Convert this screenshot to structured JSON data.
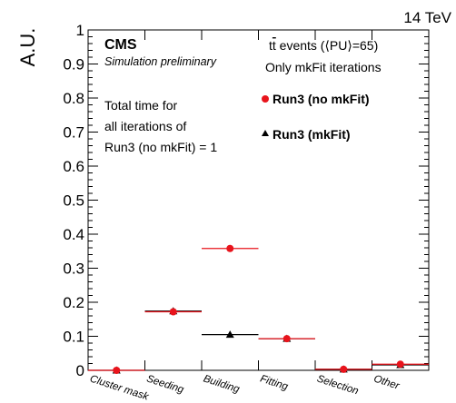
{
  "chart_data": {
    "type": "scatter",
    "title": "",
    "energy_label": "14 TeV",
    "ylabel": "A.U.",
    "xlabel": "",
    "ylim": [
      0,
      1
    ],
    "yticks": [
      "0",
      "0.1",
      "0.2",
      "0.3",
      "0.4",
      "0.5",
      "0.6",
      "0.7",
      "0.8",
      "0.9",
      "1"
    ],
    "categories": [
      "Cluster mask",
      "Seeding",
      "Building",
      "Fitting",
      "Selection",
      "Other"
    ],
    "series": [
      {
        "name": "Run3 (no mkFit)",
        "color": "#e8141c",
        "marker": "circle",
        "values": [
          0.0,
          0.172,
          0.358,
          0.093,
          0.003,
          0.018
        ]
      },
      {
        "name": "Run3 (mkFit)",
        "color": "#000000",
        "marker": "triangle",
        "values": [
          0.0,
          0.174,
          0.105,
          0.093,
          0.003,
          0.016
        ]
      }
    ],
    "annotations": {
      "cms": "CMS",
      "simulation": "Simulation preliminary",
      "events_prefix": "t",
      "events_bar": "t",
      "events_suffix": " events (⟨PU⟩=65)",
      "only": "Only mkFit iterations",
      "note_lines": [
        "Total time for",
        "all iterations of",
        "Run3 (no mkFit) = 1"
      ]
    },
    "legend_position": "top-right",
    "grid": false
  }
}
